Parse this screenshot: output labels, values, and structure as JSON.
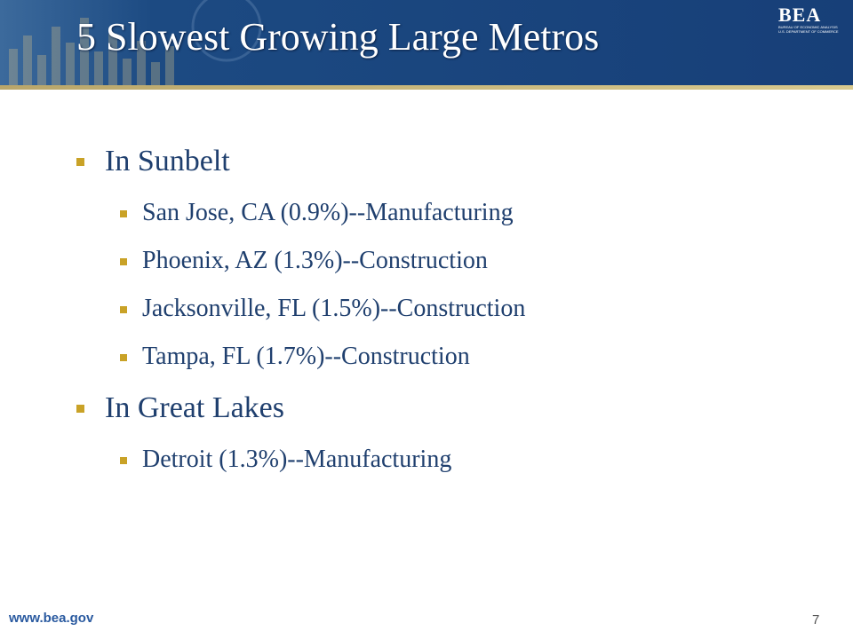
{
  "header": {
    "title": "5 Slowest Growing Large Metros",
    "logo": {
      "name": "BEA",
      "subtitle": "BUREAU OF ECONOMIC ANALYSIS",
      "department": "U.S. DEPARTMENT OF COMMERCE"
    }
  },
  "sections": [
    {
      "heading": "In Sunbelt",
      "items": [
        "San Jose, CA (0.9%)--Manufacturing",
        "Phoenix, AZ (1.3%)--Construction",
        "Jacksonville, FL (1.5%)--Construction",
        "Tampa, FL (1.7%)--Construction"
      ]
    },
    {
      "heading": "In Great Lakes",
      "items": [
        "Detroit (1.3%)--Manufacturing"
      ]
    }
  ],
  "footer": {
    "url": "www.bea.gov",
    "page": "7"
  }
}
